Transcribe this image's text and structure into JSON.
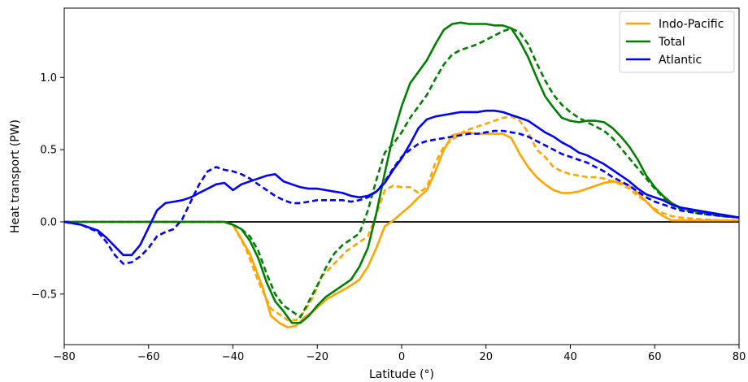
{
  "chart_data": {
    "type": "line",
    "xlabel": "Latitude (°)",
    "ylabel": "Heat transport (PW)",
    "xlim": [
      -80,
      80
    ],
    "ylim": [
      -0.85,
      1.48
    ],
    "xticks": [
      -80,
      -60,
      -40,
      -20,
      0,
      20,
      40,
      60,
      80
    ],
    "xtick_labels": [
      "−80",
      "−60",
      "−40",
      "−20",
      "0",
      "20",
      "40",
      "60",
      "80"
    ],
    "yticks": [
      -0.5,
      0.0,
      0.5,
      1.0
    ],
    "ytick_labels": [
      "−0.5",
      "0.0",
      "0.5",
      "1.0"
    ],
    "grid": false,
    "legend_position": "top-right",
    "zero_line": true,
    "series": [
      {
        "name": "Indo-Pacific",
        "color": "#ffa500",
        "style": "solid",
        "x": [
          -80,
          -42,
          -40,
          -36,
          -33,
          -31,
          -29,
          -27,
          -25,
          -23,
          -21,
          -18,
          -15,
          -12,
          -10,
          -8,
          -6,
          -4,
          -2,
          0,
          2,
          4,
          6,
          8,
          10,
          12,
          15,
          18,
          21,
          24,
          26,
          28,
          30,
          32,
          34,
          36,
          38,
          40,
          42,
          44,
          46,
          48,
          50,
          52,
          54,
          56,
          58,
          60,
          62,
          64,
          66,
          70,
          76,
          80
        ],
        "y": [
          0,
          0,
          -0.02,
          -0.22,
          -0.45,
          -0.65,
          -0.7,
          -0.73,
          -0.72,
          -0.66,
          -0.62,
          -0.54,
          -0.49,
          -0.44,
          -0.4,
          -0.31,
          -0.18,
          -0.03,
          0.01,
          0.06,
          0.11,
          0.17,
          0.22,
          0.35,
          0.5,
          0.6,
          0.62,
          0.61,
          0.61,
          0.61,
          0.58,
          0.47,
          0.38,
          0.31,
          0.26,
          0.22,
          0.2,
          0.2,
          0.21,
          0.23,
          0.25,
          0.27,
          0.28,
          0.27,
          0.25,
          0.2,
          0.14,
          0.08,
          0.04,
          0.01,
          0.01,
          0.01,
          0.01,
          0.01
        ]
      },
      {
        "name": "Indo-Pacific (dashed)",
        "color": "#ffa500",
        "style": "dashed",
        "x": [
          -80,
          -42,
          -40,
          -37,
          -34,
          -31,
          -29,
          -27,
          -25,
          -23,
          -21,
          -19,
          -16,
          -13,
          -10,
          -8,
          -6,
          -4,
          -2,
          0,
          2,
          4,
          6,
          8,
          10,
          12,
          15,
          18,
          21,
          24,
          26,
          28,
          30,
          32,
          34,
          36,
          38,
          40,
          42,
          44,
          46,
          48,
          50,
          52,
          54,
          56,
          58,
          60,
          62,
          64,
          66,
          70,
          76,
          80
        ],
        "y": [
          0,
          0,
          -0.02,
          -0.18,
          -0.41,
          -0.6,
          -0.64,
          -0.68,
          -0.68,
          -0.62,
          -0.52,
          -0.38,
          -0.29,
          -0.2,
          -0.14,
          -0.1,
          0.05,
          0.22,
          0.25,
          0.24,
          0.24,
          0.2,
          0.24,
          0.41,
          0.52,
          0.57,
          0.63,
          0.66,
          0.69,
          0.72,
          0.73,
          0.7,
          0.62,
          0.5,
          0.45,
          0.38,
          0.35,
          0.33,
          0.32,
          0.31,
          0.31,
          0.3,
          0.28,
          0.26,
          0.23,
          0.18,
          0.14,
          0.09,
          0.06,
          0.04,
          0.03,
          0.02,
          0.01,
          0.01
        ]
      },
      {
        "name": "Total",
        "color": "#008000",
        "style": "solid",
        "x": [
          -80,
          -42,
          -40,
          -38,
          -36,
          -34,
          -32,
          -30,
          -28,
          -26,
          -24,
          -22,
          -20,
          -18,
          -16,
          -14,
          -12,
          -10,
          -8,
          -6,
          -4,
          -2,
          0,
          2,
          4,
          6,
          8,
          10,
          12,
          14,
          16,
          18,
          20,
          22,
          24,
          26,
          28,
          30,
          32,
          34,
          36,
          38,
          40,
          42,
          44,
          46,
          48,
          50,
          52,
          54,
          56,
          58,
          60,
          62,
          64,
          66,
          70,
          76,
          80
        ],
        "y": [
          0,
          0,
          -0.02,
          -0.05,
          -0.13,
          -0.25,
          -0.42,
          -0.55,
          -0.62,
          -0.7,
          -0.7,
          -0.65,
          -0.58,
          -0.52,
          -0.48,
          -0.44,
          -0.4,
          -0.31,
          -0.18,
          0.06,
          0.34,
          0.6,
          0.8,
          0.96,
          1.04,
          1.12,
          1.23,
          1.33,
          1.37,
          1.38,
          1.37,
          1.37,
          1.37,
          1.36,
          1.36,
          1.34,
          1.25,
          1.14,
          1.0,
          0.87,
          0.79,
          0.72,
          0.7,
          0.69,
          0.7,
          0.7,
          0.69,
          0.65,
          0.59,
          0.52,
          0.43,
          0.32,
          0.24,
          0.18,
          0.13,
          0.1,
          0.07,
          0.04,
          0.03
        ]
      },
      {
        "name": "Total (dashed)",
        "color": "#008000",
        "style": "dashed",
        "x": [
          -80,
          -42,
          -40,
          -38,
          -36,
          -34,
          -32,
          -30,
          -28,
          -26,
          -24,
          -22,
          -20,
          -18,
          -16,
          -14,
          -12,
          -10,
          -8,
          -6,
          -4,
          -2,
          0,
          2,
          4,
          6,
          8,
          10,
          12,
          14,
          16,
          18,
          20,
          22,
          24,
          26,
          28,
          30,
          32,
          34,
          36,
          38,
          40,
          42,
          44,
          46,
          48,
          50,
          52,
          54,
          56,
          58,
          60,
          62,
          64,
          66,
          70,
          76,
          80
        ],
        "y": [
          0,
          0,
          -0.02,
          -0.05,
          -0.1,
          -0.2,
          -0.36,
          -0.5,
          -0.58,
          -0.62,
          -0.66,
          -0.55,
          -0.44,
          -0.32,
          -0.22,
          -0.16,
          -0.12,
          -0.08,
          0.08,
          0.29,
          0.48,
          0.54,
          0.62,
          0.72,
          0.8,
          0.88,
          0.99,
          1.09,
          1.16,
          1.19,
          1.21,
          1.23,
          1.26,
          1.29,
          1.32,
          1.34,
          1.31,
          1.23,
          1.1,
          0.98,
          0.88,
          0.81,
          0.76,
          0.72,
          0.69,
          0.66,
          0.63,
          0.58,
          0.51,
          0.44,
          0.37,
          0.3,
          0.23,
          0.17,
          0.12,
          0.09,
          0.06,
          0.04,
          0.03
        ]
      },
      {
        "name": "Atlantic",
        "color": "#0000ff",
        "style": "solid",
        "x": [
          -80,
          -76,
          -72,
          -70,
          -68,
          -66,
          -64,
          -62,
          -60,
          -58,
          -56,
          -54,
          -52,
          -50,
          -48,
          -46,
          -44,
          -42,
          -40,
          -38,
          -36,
          -34,
          -32,
          -30,
          -28,
          -26,
          -24,
          -22,
          -20,
          -18,
          -16,
          -14,
          -12,
          -10,
          -8,
          -6,
          -4,
          -2,
          0,
          2,
          4,
          6,
          8,
          10,
          12,
          14,
          16,
          18,
          20,
          22,
          24,
          26,
          28,
          30,
          32,
          34,
          36,
          38,
          40,
          42,
          44,
          46,
          48,
          50,
          52,
          54,
          56,
          58,
          60,
          62,
          64,
          66,
          70,
          76,
          80
        ],
        "y": [
          0,
          -0.02,
          -0.06,
          -0.11,
          -0.17,
          -0.23,
          -0.23,
          -0.16,
          -0.04,
          0.08,
          0.13,
          0.14,
          0.15,
          0.17,
          0.2,
          0.23,
          0.26,
          0.27,
          0.22,
          0.26,
          0.28,
          0.3,
          0.32,
          0.33,
          0.28,
          0.26,
          0.24,
          0.23,
          0.23,
          0.22,
          0.21,
          0.2,
          0.18,
          0.17,
          0.18,
          0.21,
          0.27,
          0.36,
          0.44,
          0.54,
          0.65,
          0.71,
          0.73,
          0.74,
          0.75,
          0.76,
          0.76,
          0.76,
          0.77,
          0.77,
          0.76,
          0.74,
          0.72,
          0.7,
          0.66,
          0.62,
          0.59,
          0.55,
          0.52,
          0.48,
          0.46,
          0.43,
          0.4,
          0.36,
          0.32,
          0.28,
          0.23,
          0.19,
          0.17,
          0.15,
          0.12,
          0.1,
          0.08,
          0.05,
          0.03
        ]
      },
      {
        "name": "Atlantic (dashed)",
        "color": "#0000ff",
        "style": "dashed",
        "x": [
          -80,
          -76,
          -72,
          -70,
          -68,
          -66,
          -64,
          -62,
          -60,
          -58,
          -56,
          -54,
          -52,
          -50,
          -48,
          -46,
          -44,
          -42,
          -40,
          -38,
          -36,
          -34,
          -32,
          -30,
          -28,
          -26,
          -24,
          -22,
          -20,
          -18,
          -16,
          -14,
          -12,
          -10,
          -8,
          -6,
          -4,
          -2,
          0,
          2,
          4,
          6,
          8,
          10,
          12,
          14,
          16,
          18,
          20,
          22,
          24,
          26,
          28,
          30,
          32,
          34,
          36,
          38,
          40,
          42,
          44,
          46,
          48,
          50,
          52,
          54,
          56,
          58,
          60,
          62,
          64,
          66,
          70,
          76,
          80
        ],
        "y": [
          0,
          -0.02,
          -0.07,
          -0.14,
          -0.23,
          -0.29,
          -0.28,
          -0.24,
          -0.18,
          -0.1,
          -0.07,
          -0.05,
          0.02,
          0.14,
          0.26,
          0.35,
          0.38,
          0.36,
          0.35,
          0.33,
          0.3,
          0.26,
          0.22,
          0.18,
          0.15,
          0.13,
          0.13,
          0.14,
          0.15,
          0.15,
          0.15,
          0.15,
          0.14,
          0.15,
          0.17,
          0.21,
          0.28,
          0.37,
          0.45,
          0.5,
          0.54,
          0.56,
          0.57,
          0.58,
          0.59,
          0.6,
          0.61,
          0.61,
          0.62,
          0.63,
          0.63,
          0.62,
          0.61,
          0.59,
          0.56,
          0.53,
          0.5,
          0.47,
          0.45,
          0.43,
          0.41,
          0.38,
          0.35,
          0.31,
          0.28,
          0.25,
          0.21,
          0.17,
          0.14,
          0.12,
          0.1,
          0.08,
          0.06,
          0.04,
          0.03
        ]
      }
    ],
    "legend": [
      {
        "label": "Indo-Pacific",
        "color": "#ffa500"
      },
      {
        "label": "Total",
        "color": "#008000"
      },
      {
        "label": "Atlantic",
        "color": "#0000ff"
      }
    ]
  }
}
